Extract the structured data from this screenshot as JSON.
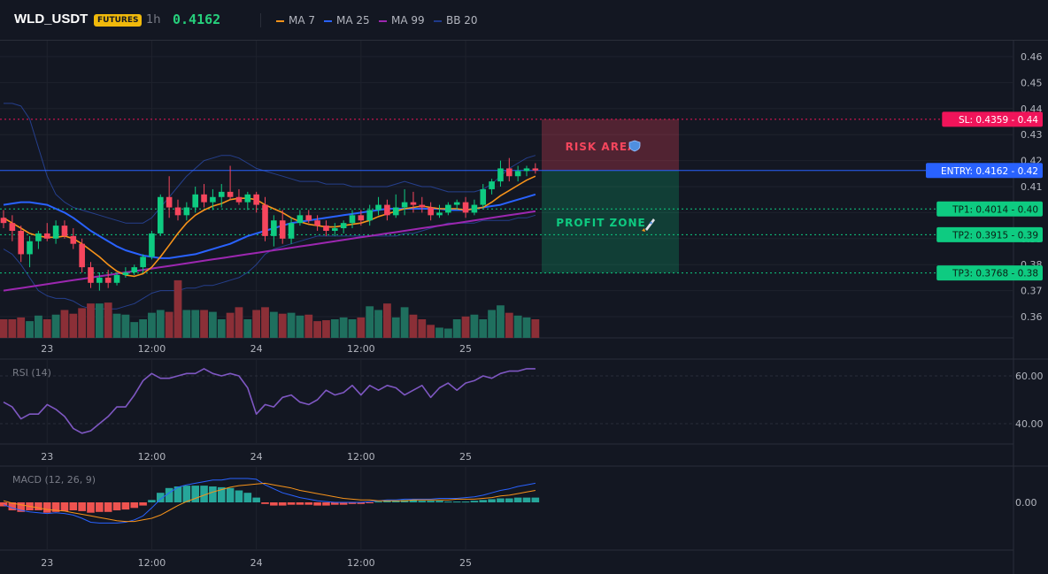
{
  "header": {
    "symbol": "WLD_USDT",
    "badge": "FUTURES",
    "interval": "1h",
    "price": "0.4162",
    "legend": [
      {
        "label": "MA 7",
        "color": "#f7931a"
      },
      {
        "label": "MA 25",
        "color": "#2962ff"
      },
      {
        "label": "MA 99",
        "color": "#9c27b0"
      },
      {
        "label": "BB 20",
        "color": "#1e3a8a"
      }
    ]
  },
  "colors": {
    "up": "#26a69a",
    "down": "#ef5350",
    "bull_candle": "#0ecb81",
    "bear_candle": "#f6465d",
    "vol_up": "#1f6f5e",
    "vol_down": "#8b2f37",
    "rsi": "#7e57c2",
    "macd": "#2962ff",
    "signal": "#f7931a",
    "sl": "#f0145a",
    "entry": "#2962ff",
    "tp": "#0ecb81"
  },
  "annotations": {
    "risk_label": "RISK AREA",
    "profit_label": "PROFIT ZONE",
    "levels": [
      {
        "name": "sl",
        "label": "SL: 0.4359",
        "value": 0.4359,
        "tick": "0.44",
        "color": "#f0145a"
      },
      {
        "name": "entry",
        "label": "ENTRY: 0.4162",
        "value": 0.4162,
        "tick": "0.42",
        "color": "#2962ff"
      },
      {
        "name": "tp1",
        "label": "TP1: 0.4014",
        "value": 0.4014,
        "tick": "0.40",
        "color": "#0ecb81"
      },
      {
        "name": "tp2",
        "label": "TP2: 0.3915",
        "value": 0.3915,
        "tick": "0.39",
        "color": "#0ecb81"
      },
      {
        "name": "tp3",
        "label": "TP3: 0.3768",
        "value": 0.3768,
        "tick": "0.38",
        "color": "#0ecb81"
      }
    ]
  },
  "chart_data": [
    {
      "name": "price",
      "type": "candlestick",
      "x_ticks": [
        {
          "label": "23",
          "index": 5
        },
        {
          "label": "12:00",
          "index": 17
        },
        {
          "label": "24",
          "index": 29
        },
        {
          "label": "12:00",
          "index": 41
        },
        {
          "label": "25",
          "index": 53
        }
      ],
      "y_ticks": [
        "0.46",
        "0.45",
        "0.44",
        "0.43",
        "0.42",
        "0.41",
        "0.40",
        "0.39",
        "0.38",
        "0.37",
        "0.36"
      ],
      "y_range": [
        0.355,
        0.4625
      ],
      "ohlc": [
        [
          0.398,
          0.401,
          0.394,
          0.396
        ],
        [
          0.396,
          0.399,
          0.389,
          0.393
        ],
        [
          0.393,
          0.395,
          0.381,
          0.384
        ],
        [
          0.384,
          0.391,
          0.379,
          0.389
        ],
        [
          0.389,
          0.393,
          0.386,
          0.392
        ],
        [
          0.392,
          0.396,
          0.389,
          0.39
        ],
        [
          0.39,
          0.397,
          0.388,
          0.395
        ],
        [
          0.395,
          0.397,
          0.39,
          0.391
        ],
        [
          0.391,
          0.394,
          0.386,
          0.388
        ],
        [
          0.388,
          0.39,
          0.377,
          0.379
        ],
        [
          0.379,
          0.381,
          0.371,
          0.373
        ],
        [
          0.373,
          0.377,
          0.37,
          0.375
        ],
        [
          0.375,
          0.378,
          0.371,
          0.373
        ],
        [
          0.373,
          0.377,
          0.372,
          0.376
        ],
        [
          0.376,
          0.379,
          0.375,
          0.377
        ],
        [
          0.377,
          0.38,
          0.376,
          0.379
        ],
        [
          0.379,
          0.384,
          0.377,
          0.383
        ],
        [
          0.383,
          0.393,
          0.382,
          0.392
        ],
        [
          0.392,
          0.407,
          0.391,
          0.406
        ],
        [
          0.406,
          0.414,
          0.398,
          0.402
        ],
        [
          0.402,
          0.405,
          0.397,
          0.399
        ],
        [
          0.399,
          0.404,
          0.397,
          0.402
        ],
        [
          0.402,
          0.41,
          0.4,
          0.407
        ],
        [
          0.407,
          0.411,
          0.402,
          0.404
        ],
        [
          0.404,
          0.409,
          0.401,
          0.406
        ],
        [
          0.406,
          0.411,
          0.402,
          0.408
        ],
        [
          0.408,
          0.418,
          0.405,
          0.406
        ],
        [
          0.406,
          0.409,
          0.403,
          0.404
        ],
        [
          0.404,
          0.408,
          0.401,
          0.407
        ],
        [
          0.407,
          0.408,
          0.4,
          0.403
        ],
        [
          0.403,
          0.406,
          0.389,
          0.391
        ],
        [
          0.391,
          0.399,
          0.387,
          0.397
        ],
        [
          0.397,
          0.401,
          0.388,
          0.39
        ],
        [
          0.39,
          0.398,
          0.388,
          0.396
        ],
        [
          0.396,
          0.401,
          0.395,
          0.399
        ],
        [
          0.399,
          0.401,
          0.396,
          0.397
        ],
        [
          0.397,
          0.399,
          0.393,
          0.395
        ],
        [
          0.395,
          0.397,
          0.391,
          0.393
        ],
        [
          0.393,
          0.396,
          0.391,
          0.394
        ],
        [
          0.394,
          0.397,
          0.392,
          0.396
        ],
        [
          0.396,
          0.401,
          0.394,
          0.399
        ],
        [
          0.399,
          0.401,
          0.395,
          0.397
        ],
        [
          0.397,
          0.403,
          0.395,
          0.401
        ],
        [
          0.401,
          0.406,
          0.399,
          0.403
        ],
        [
          0.403,
          0.405,
          0.397,
          0.399
        ],
        [
          0.399,
          0.407,
          0.398,
          0.402
        ],
        [
          0.402,
          0.409,
          0.399,
          0.404
        ],
        [
          0.404,
          0.408,
          0.4,
          0.403
        ],
        [
          0.403,
          0.406,
          0.4,
          0.402
        ],
        [
          0.402,
          0.404,
          0.397,
          0.399
        ],
        [
          0.399,
          0.403,
          0.398,
          0.4
        ],
        [
          0.4,
          0.404,
          0.399,
          0.403
        ],
        [
          0.403,
          0.405,
          0.401,
          0.404
        ],
        [
          0.404,
          0.406,
          0.398,
          0.4
        ],
        [
          0.4,
          0.405,
          0.399,
          0.403
        ],
        [
          0.403,
          0.411,
          0.402,
          0.409
        ],
        [
          0.409,
          0.413,
          0.407,
          0.412
        ],
        [
          0.412,
          0.42,
          0.41,
          0.417
        ],
        [
          0.417,
          0.421,
          0.412,
          0.414
        ],
        [
          0.414,
          0.418,
          0.412,
          0.416
        ],
        [
          0.416,
          0.418,
          0.414,
          0.417
        ],
        [
          0.417,
          0.419,
          0.415,
          0.4162
        ]
      ],
      "volume": [
        20,
        20,
        22,
        18,
        24,
        20,
        25,
        30,
        26,
        32,
        37,
        37,
        38,
        26,
        25,
        17,
        20,
        27,
        30,
        28,
        62,
        30,
        30,
        30,
        28,
        20,
        27,
        33,
        20,
        30,
        33,
        28,
        26,
        27,
        24,
        25,
        18,
        19,
        20,
        22,
        20,
        22,
        34,
        30,
        37,
        22,
        33,
        25,
        20,
        14,
        11,
        10,
        20,
        23,
        25,
        20,
        30,
        35,
        27,
        24,
        22,
        20
      ],
      "ma7": [
        0.398,
        0.396,
        0.394,
        0.392,
        0.391,
        0.3905,
        0.3905,
        0.391,
        0.39,
        0.388,
        0.3855,
        0.383,
        0.38,
        0.3775,
        0.376,
        0.3755,
        0.3765,
        0.379,
        0.383,
        0.3875,
        0.392,
        0.396,
        0.399,
        0.401,
        0.4025,
        0.4035,
        0.405,
        0.4055,
        0.4055,
        0.405,
        0.403,
        0.4015,
        0.4,
        0.398,
        0.3965,
        0.3955,
        0.395,
        0.3945,
        0.3945,
        0.395,
        0.3955,
        0.396,
        0.397,
        0.3985,
        0.3995,
        0.4005,
        0.4015,
        0.402,
        0.4025,
        0.402,
        0.4015,
        0.4015,
        0.4015,
        0.401,
        0.4015,
        0.402,
        0.404,
        0.4065,
        0.4085,
        0.4105,
        0.4125,
        0.414
      ],
      "ma25": [
        0.403,
        0.4035,
        0.404,
        0.404,
        0.4035,
        0.403,
        0.4015,
        0.4,
        0.398,
        0.3955,
        0.393,
        0.391,
        0.389,
        0.387,
        0.3855,
        0.3845,
        0.3835,
        0.383,
        0.3825,
        0.3825,
        0.383,
        0.3835,
        0.384,
        0.385,
        0.386,
        0.387,
        0.388,
        0.3895,
        0.391,
        0.392,
        0.393,
        0.394,
        0.395,
        0.396,
        0.3965,
        0.397,
        0.3975,
        0.398,
        0.3985,
        0.399,
        0.3995,
        0.4,
        0.4005,
        0.401,
        0.4015,
        0.4015,
        0.4015,
        0.4015,
        0.4015,
        0.4015,
        0.4015,
        0.401,
        0.401,
        0.401,
        0.4015,
        0.402,
        0.4025,
        0.403,
        0.404,
        0.405,
        0.406,
        0.407
      ],
      "ma99": [
        0.37,
        0.3705,
        0.371,
        0.3715,
        0.372,
        0.3725,
        0.373,
        0.3735,
        0.374,
        0.3745,
        0.375,
        0.3755,
        0.376,
        0.3765,
        0.377,
        0.3775,
        0.378,
        0.3785,
        0.379,
        0.3795,
        0.38,
        0.3805,
        0.381,
        0.3815,
        0.382,
        0.3825,
        0.383,
        0.3835,
        0.384,
        0.3845,
        0.385,
        0.3855,
        0.386,
        0.3865,
        0.387,
        0.3875,
        0.388,
        0.3885,
        0.389,
        0.3895,
        0.39,
        0.3905,
        0.391,
        0.3915,
        0.392,
        0.3925,
        0.393,
        0.3935,
        0.394,
        0.3945,
        0.395,
        0.3955,
        0.396,
        0.3965,
        0.397,
        0.3975,
        0.398,
        0.3985,
        0.399,
        0.3995,
        0.4,
        0.4005
      ],
      "bb_upper": [
        0.442,
        0.442,
        0.441,
        0.436,
        0.425,
        0.414,
        0.407,
        0.404,
        0.402,
        0.401,
        0.4,
        0.399,
        0.398,
        0.397,
        0.396,
        0.396,
        0.396,
        0.398,
        0.402,
        0.406,
        0.41,
        0.414,
        0.417,
        0.42,
        0.421,
        0.422,
        0.422,
        0.421,
        0.419,
        0.417,
        0.416,
        0.415,
        0.414,
        0.413,
        0.412,
        0.412,
        0.412,
        0.411,
        0.411,
        0.411,
        0.41,
        0.41,
        0.41,
        0.41,
        0.41,
        0.411,
        0.412,
        0.411,
        0.41,
        0.41,
        0.409,
        0.408,
        0.408,
        0.408,
        0.408,
        0.409,
        0.411,
        0.414,
        0.417,
        0.419,
        0.421,
        0.422
      ],
      "bb_lower": [
        0.386,
        0.384,
        0.38,
        0.375,
        0.37,
        0.368,
        0.367,
        0.367,
        0.366,
        0.364,
        0.363,
        0.363,
        0.363,
        0.363,
        0.364,
        0.365,
        0.367,
        0.369,
        0.37,
        0.37,
        0.37,
        0.371,
        0.371,
        0.372,
        0.372,
        0.373,
        0.374,
        0.375,
        0.377,
        0.38,
        0.384,
        0.386,
        0.387,
        0.388,
        0.389,
        0.39,
        0.391,
        0.391,
        0.391,
        0.391,
        0.391,
        0.391,
        0.391,
        0.391,
        0.391,
        0.391,
        0.392,
        0.392,
        0.393,
        0.394,
        0.395,
        0.396,
        0.396,
        0.396,
        0.396,
        0.397,
        0.397,
        0.397,
        0.397,
        0.398,
        0.398,
        0.399
      ]
    },
    {
      "name": "rsi",
      "type": "line",
      "title": "RSI (14)",
      "y_ticks": [
        "60.00",
        "40.00"
      ],
      "y_range": [
        30,
        66
      ],
      "values": [
        49,
        47,
        42,
        44,
        44,
        48,
        46,
        43,
        38,
        36,
        37,
        40,
        43,
        47,
        47,
        52,
        58,
        61,
        59,
        59,
        60,
        61,
        61,
        63,
        61,
        60,
        61,
        60,
        55,
        44,
        48,
        47,
        51,
        52,
        49,
        48,
        50,
        54,
        52,
        53,
        56,
        52,
        56,
        54,
        56,
        55,
        52,
        54,
        56,
        51,
        55,
        57,
        54,
        57,
        58,
        60,
        59,
        61,
        62,
        62,
        63,
        63
      ]
    },
    {
      "name": "macd",
      "type": "bar+line",
      "title": "MACD (12, 26, 9)",
      "y_ticks": [
        "0.00"
      ],
      "y_range": [
        -0.0045,
        0.0045
      ],
      "histogram": [
        -0.0005,
        -0.001,
        -0.0012,
        -0.001,
        -0.001,
        -0.0013,
        -0.0012,
        -0.0011,
        -0.001,
        -0.0011,
        -0.0013,
        -0.0012,
        -0.0012,
        -0.001,
        -0.0009,
        -0.0007,
        -0.0004,
        0.0003,
        0.0012,
        0.0018,
        0.002,
        0.0021,
        0.0021,
        0.0021,
        0.002,
        0.0019,
        0.0018,
        0.0015,
        0.0012,
        0.0006,
        -0.0002,
        -0.0004,
        -0.0004,
        -0.0003,
        -0.0003,
        -0.0003,
        -0.0004,
        -0.0004,
        -0.0003,
        -0.0003,
        -0.0002,
        -0.0002,
        -0.0001,
        0.0001,
        0.0002,
        0.0002,
        0.0003,
        0.0003,
        0.0002,
        0.0002,
        0.0002,
        0.0001,
        0.0001,
        0.0001,
        0.0002,
        0.0003,
        0.0004,
        0.0005,
        0.0005,
        0.0006,
        0.0006,
        0.0006
      ],
      "macd": [
        -0.0003,
        -0.0007,
        -0.001,
        -0.0012,
        -0.0013,
        -0.0014,
        -0.0013,
        -0.0014,
        -0.0016,
        -0.002,
        -0.0025,
        -0.0026,
        -0.0026,
        -0.0026,
        -0.0025,
        -0.0022,
        -0.0017,
        -0.0007,
        0.0004,
        0.0012,
        0.0019,
        0.0022,
        0.0024,
        0.0026,
        0.0028,
        0.0028,
        0.003,
        0.003,
        0.003,
        0.0029,
        0.0022,
        0.0017,
        0.0012,
        0.0009,
        0.0006,
        0.0004,
        0.0002,
        0.0001,
        0.0,
        0.0,
        0.0,
        0.0,
        0.0001,
        0.0002,
        0.0003,
        0.0003,
        0.0004,
        0.0004,
        0.0004,
        0.0004,
        0.0005,
        0.0005,
        0.0005,
        0.0006,
        0.0007,
        0.0009,
        0.0012,
        0.0015,
        0.0017,
        0.002,
        0.0022,
        0.0024
      ],
      "signal": [
        0.0002,
        -0.0001,
        -0.0003,
        -0.0005,
        -0.0007,
        -0.0009,
        -0.001,
        -0.0011,
        -0.0013,
        -0.0015,
        -0.0017,
        -0.0019,
        -0.0021,
        -0.0023,
        -0.0024,
        -0.0024,
        -0.0022,
        -0.002,
        -0.0016,
        -0.001,
        -0.0004,
        0.0001,
        0.0005,
        0.0009,
        0.0013,
        0.0016,
        0.0019,
        0.0021,
        0.0022,
        0.0023,
        0.0024,
        0.0022,
        0.002,
        0.0018,
        0.0015,
        0.0013,
        0.0011,
        0.0009,
        0.0007,
        0.0005,
        0.0004,
        0.0003,
        0.0003,
        0.0002,
        0.0002,
        0.0002,
        0.0002,
        0.0003,
        0.0003,
        0.0003,
        0.0003,
        0.0003,
        0.0004,
        0.0004,
        0.0004,
        0.0005,
        0.0006,
        0.0008,
        0.0009,
        0.0011,
        0.0013,
        0.0015
      ]
    }
  ]
}
